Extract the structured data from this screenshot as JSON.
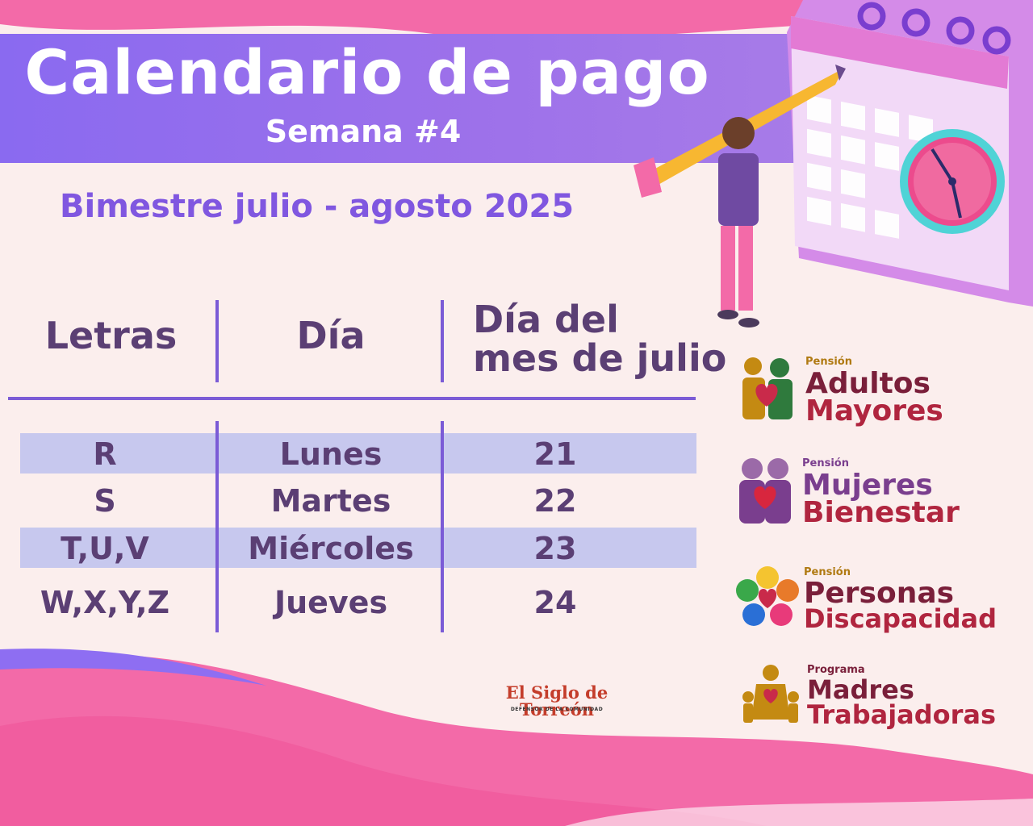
{
  "title": "Calendario de pago",
  "subtitle": "Semana #4",
  "period": "Bimestre julio - agosto 2025",
  "table": {
    "headers": {
      "letras": "Letras",
      "dia": "Día",
      "mes_line1": "Día del",
      "mes_line2": "mes de julio"
    },
    "rows": [
      {
        "letras": "R",
        "dia": "Lunes",
        "fecha": "21",
        "highlight": true
      },
      {
        "letras": "S",
        "dia": "Martes",
        "fecha": "22",
        "highlight": false
      },
      {
        "letras": "T,U,V",
        "dia": "Miércoles",
        "fecha": "23",
        "highlight": true
      },
      {
        "letras": "W,X,Y,Z",
        "dia": "Jueves",
        "fecha": "24",
        "highlight": false
      }
    ]
  },
  "logos": [
    {
      "small": "Pensión",
      "line1": "Adultos",
      "line2": "Mayores",
      "icon": "elderly-couple-heart-icon"
    },
    {
      "small": "Pensión",
      "line1": "Mujeres",
      "line2": "Bienestar",
      "icon": "women-heart-icon"
    },
    {
      "small": "Pensión",
      "line1": "Personas",
      "line2": "Discapacidad",
      "icon": "disability-flower-icon"
    },
    {
      "small": "Programa",
      "line1": "Madres",
      "line2": "Trabajadoras",
      "icon": "mother-children-icon"
    }
  ],
  "publisher": {
    "name": "El Siglo de Torreón",
    "tagline": "DEFENSOR DE LA COMUNIDAD"
  },
  "colors": {
    "background": "#fbeeed",
    "header_purple": "#8a6af0",
    "accent_purple": "#8057e0",
    "text_dark_purple": "#5b3f74",
    "row_highlight": "#c7c8ee",
    "pink": "#f36aa8",
    "logo_maroon": "#8e1b3f",
    "logo_gold": "#b07a12",
    "logo_purple": "#7a3e8e"
  },
  "illustration": "person-with-pencil-marking-calendar-and-clock"
}
